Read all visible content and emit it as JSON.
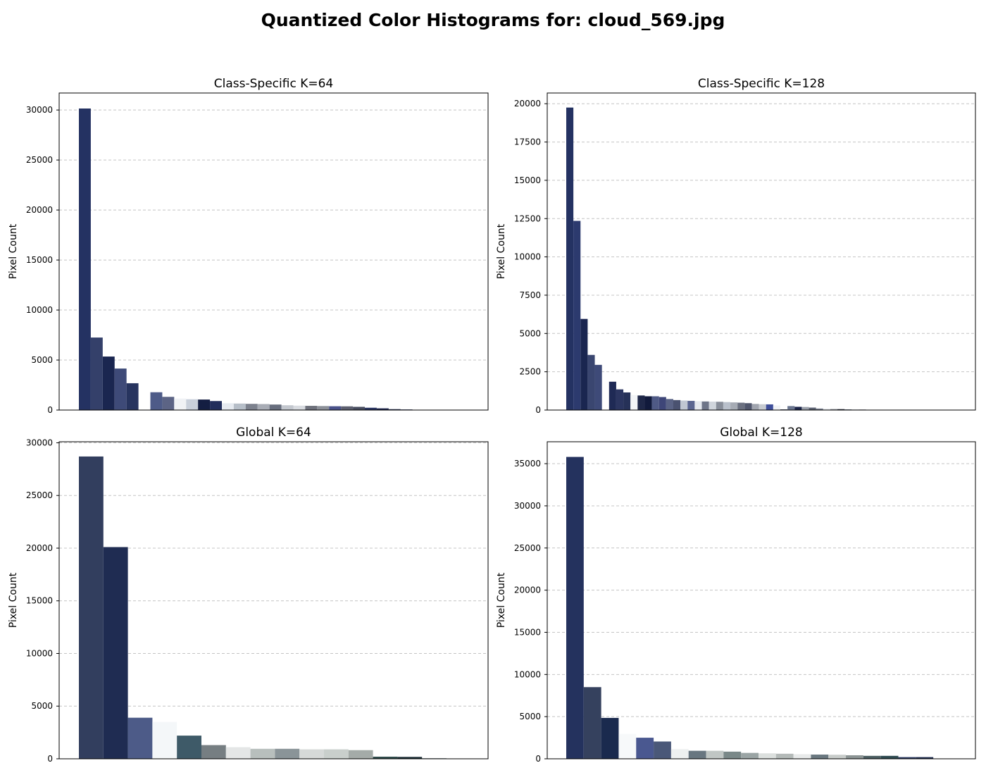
{
  "figure": {
    "suptitle": "Quantized Color Histograms for: cloud_569.jpg"
  },
  "chart_data": [
    {
      "type": "bar",
      "title": "Class-Specific K=64",
      "xlabel": "",
      "ylabel": "Pixel Count",
      "ylim": [
        0,
        31700
      ],
      "yticks": [
        0,
        5000,
        10000,
        15000,
        20000,
        25000,
        30000
      ],
      "xlim": [
        0,
        36
      ],
      "grid": "y-dashed",
      "values": [
        30150,
        7250,
        5350,
        4150,
        2680,
        0,
        1780,
        1320,
        1150,
        1080,
        1050,
        900,
        680,
        650,
        620,
        600,
        550,
        480,
        440,
        420,
        400,
        380,
        370,
        320,
        230,
        170,
        90,
        60,
        20,
        5
      ],
      "colors": [
        "#243262",
        "#34406a",
        "#1a2650",
        "#3e4a78",
        "#27345f",
        "#ffffff",
        "#4e5b88",
        "#5c6485",
        "#f0f2f5",
        "#c9d0db",
        "#141e42",
        "#222e5c",
        "#e6eaf0",
        "#b6bec8",
        "#7c818d",
        "#a8acb5",
        "#686e7e",
        "#c3c7ce",
        "#d8dbe0",
        "#6e717c",
        "#8c9099",
        "#4a528a",
        "#5c5f6f",
        "#464b5e",
        "#25305e",
        "#1b234a",
        "#2d3759",
        "#38406a",
        "#4b5370",
        "#3a3f55"
      ]
    },
    {
      "type": "bar",
      "title": "Class-Specific K=128",
      "xlabel": "",
      "ylabel": "Pixel Count",
      "ylim": [
        0,
        20700
      ],
      "yticks": [
        0,
        2500,
        5000,
        7500,
        10000,
        12500,
        15000,
        17500,
        20000
      ],
      "xlim": [
        0,
        60
      ],
      "grid": "y-dashed",
      "values": [
        19750,
        12350,
        5950,
        3600,
        2950,
        0,
        1850,
        1350,
        1150,
        980,
        950,
        900,
        900,
        850,
        720,
        650,
        620,
        600,
        580,
        560,
        550,
        540,
        520,
        500,
        480,
        450,
        400,
        380,
        370,
        300,
        40,
        260,
        210,
        200,
        160,
        100,
        90,
        70,
        60,
        40,
        40,
        30,
        20
      ],
      "colors": [
        "#243262",
        "#2c3a6e",
        "#1a2650",
        "#3a4670",
        "#3e4a78",
        "#ffffff",
        "#1f2a55",
        "#2b3560",
        "#263158",
        "#f2f4f7",
        "#1e2748",
        "#111a3c",
        "#4f5a86",
        "#3e4678",
        "#5a6385",
        "#4a5270",
        "#c0c7d2",
        "#5a6590",
        "#e4e8ee",
        "#6e7588",
        "#d0d5dc",
        "#888e9a",
        "#b9c0cb",
        "#a6abb4",
        "#6b7080",
        "#50566c",
        "#a0a4ae",
        "#c6cad0",
        "#3e4e9a",
        "#f0f2f5",
        "#1c2440",
        "#6b7690",
        "#1a2348",
        "#9aa0aa",
        "#5a6070",
        "#7a8090",
        "#e8eaee",
        "#9ea2aa",
        "#2a2f40",
        "#505870",
        "#c8ccd2",
        "#2e3650",
        "#545a68"
      ]
    },
    {
      "type": "bar",
      "title": "Global K=64",
      "xlabel": "",
      "ylabel": "Pixel Count",
      "ylim": [
        0,
        30100
      ],
      "yticks": [
        0,
        5000,
        10000,
        15000,
        20000,
        25000,
        30000
      ],
      "xlim": [
        0,
        17.5
      ],
      "grid": "y-dashed",
      "values": [
        28700,
        20100,
        3900,
        3500,
        2200,
        1300,
        1100,
        950,
        950,
        900,
        900,
        820,
        200,
        180,
        50
      ],
      "colors": [
        "#323e5e",
        "#1f2c52",
        "#4d5b88",
        "#f4f7f9",
        "#3e5a68",
        "#767e82",
        "#e4e6e6",
        "#b8bfbd",
        "#8a9498",
        "#d6d9d8",
        "#c9cfcc",
        "#a4aba8",
        "#2f4a4a",
        "#1c2e36",
        "#607078"
      ]
    },
    {
      "type": "bar",
      "title": "Global K=128",
      "xlabel": "",
      "ylabel": "Pixel Count",
      "ylim": [
        0,
        37600
      ],
      "yticks": [
        0,
        5000,
        10000,
        15000,
        20000,
        25000,
        30000,
        35000
      ],
      "xlim": [
        0,
        24.5
      ],
      "grid": "y-dashed",
      "values": [
        35800,
        8500,
        4850,
        2950,
        2500,
        2050,
        1150,
        950,
        950,
        850,
        700,
        650,
        600,
        550,
        500,
        480,
        420,
        350,
        350,
        200,
        200
      ],
      "colors": [
        "#24325e",
        "#35415e",
        "#1a2a4e",
        "#f7f9fa",
        "#4a5890",
        "#4a5878",
        "#eef0f0",
        "#687680",
        "#c0c6c4",
        "#7a8888",
        "#9aa4a4",
        "#dce0de",
        "#b4bab8",
        "#e8eaea",
        "#6a7880",
        "#c8ccca",
        "#8c9494",
        "#4a5c60",
        "#2e4a50",
        "#2a3a60",
        "#1e2c4e"
      ]
    }
  ]
}
